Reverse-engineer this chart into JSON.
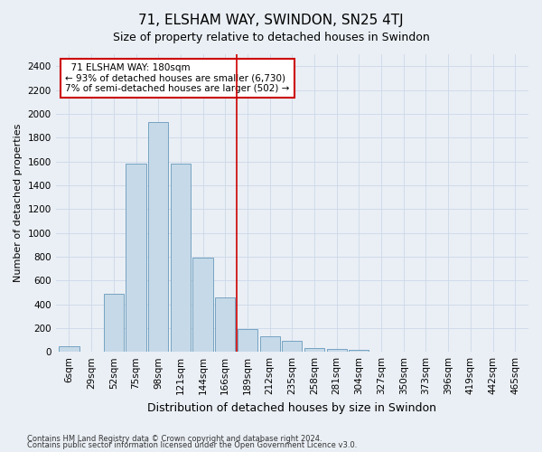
{
  "title": "71, ELSHAM WAY, SWINDON, SN25 4TJ",
  "subtitle": "Size of property relative to detached houses in Swindon",
  "xlabel": "Distribution of detached houses by size in Swindon",
  "ylabel": "Number of detached properties",
  "footnote1": "Contains HM Land Registry data © Crown copyright and database right 2024.",
  "footnote2": "Contains public sector information licensed under the Open Government Licence v3.0.",
  "categories": [
    "6sqm",
    "29sqm",
    "52sqm",
    "75sqm",
    "98sqm",
    "121sqm",
    "144sqm",
    "166sqm",
    "189sqm",
    "212sqm",
    "235sqm",
    "258sqm",
    "281sqm",
    "304sqm",
    "327sqm",
    "350sqm",
    "373sqm",
    "396sqm",
    "419sqm",
    "442sqm",
    "465sqm"
  ],
  "values": [
    50,
    0,
    490,
    1580,
    1930,
    1580,
    790,
    460,
    195,
    130,
    90,
    35,
    25,
    20,
    0,
    0,
    0,
    0,
    0,
    0,
    0
  ],
  "bar_color": "#c6d9e8",
  "bar_edge_color": "#6699bb",
  "vline_x_index": 7.5,
  "vline_color": "#cc0000",
  "annotation_text": "  71 ELSHAM WAY: 180sqm\n← 93% of detached houses are smaller (6,730)\n7% of semi-detached houses are larger (502) →",
  "annotation_box_color": "#ffffff",
  "annotation_box_edge_color": "#cc0000",
  "ylim": [
    0,
    2500
  ],
  "yticks": [
    0,
    200,
    400,
    600,
    800,
    1000,
    1200,
    1400,
    1600,
    1800,
    2000,
    2200,
    2400
  ],
  "grid_color": "#ccd8e8",
  "bg_color": "#eaeff5",
  "title_fontsize": 11,
  "subtitle_fontsize": 9,
  "xlabel_fontsize": 9,
  "ylabel_fontsize": 8,
  "tick_fontsize": 7.5,
  "annotation_fontsize": 7.5
}
